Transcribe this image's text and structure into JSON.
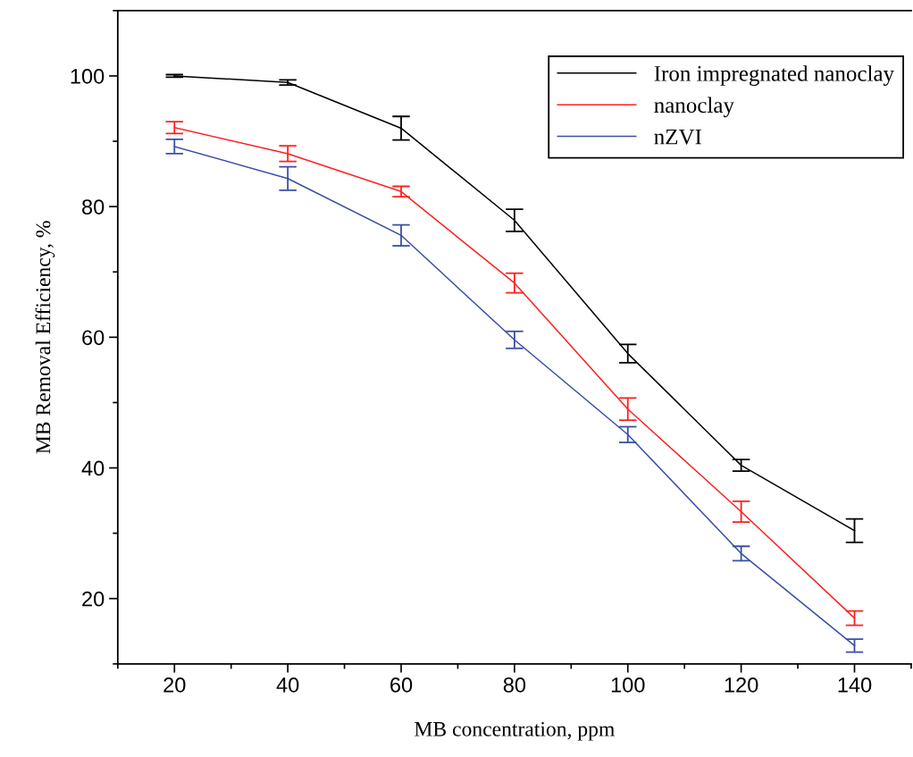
{
  "chart_data": {
    "type": "line",
    "xlabel": "MB concentration, ppm",
    "ylabel": "MB Removal Efficiency, %",
    "x": [
      20,
      40,
      60,
      80,
      100,
      120,
      140
    ],
    "series": [
      {
        "name": "Iron impregnated nanoclay",
        "color": "#000000",
        "values": [
          100,
          99.0,
          92.0,
          77.9,
          57.5,
          40.4,
          30.4
        ],
        "errors": [
          0.2,
          0.4,
          1.8,
          1.7,
          1.4,
          0.9,
          1.8
        ]
      },
      {
        "name": "nanoclay",
        "color": "#ff2020",
        "values": [
          92.1,
          88.1,
          82.3,
          68.3,
          49.0,
          33.3,
          17.0
        ],
        "errors": [
          0.9,
          1.2,
          0.8,
          1.5,
          1.7,
          1.6,
          1.1
        ]
      },
      {
        "name": "nZVI",
        "color": "#3a4fa8",
        "values": [
          89.2,
          84.3,
          75.6,
          59.6,
          45.1,
          26.9,
          12.8
        ],
        "errors": [
          1.1,
          1.8,
          1.6,
          1.3,
          1.2,
          1.1,
          1.0
        ]
      }
    ],
    "xlim": [
      10,
      150
    ],
    "xticks": [
      20,
      40,
      60,
      80,
      100,
      120,
      140
    ],
    "ylim": [
      10,
      110
    ],
    "yticks": [
      20,
      40,
      60,
      80,
      100
    ],
    "legend": "top right",
    "grid": false,
    "marker": "none",
    "line_style": "solid"
  }
}
